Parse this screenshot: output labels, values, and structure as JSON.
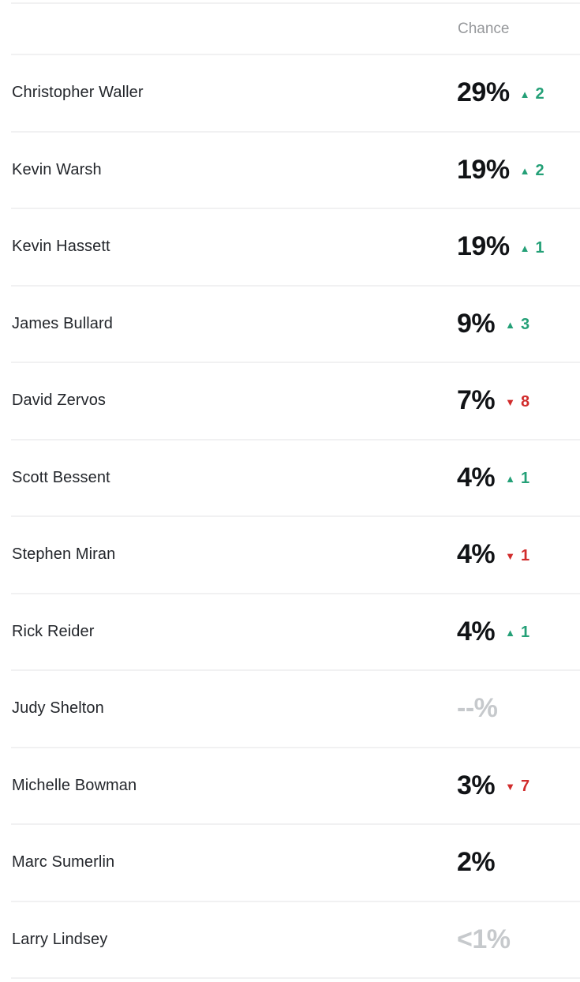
{
  "table": {
    "chance_label": "Chance",
    "rows": [
      {
        "name": "Christopher Waller",
        "value": "29%",
        "value_class": "value",
        "delta_icon": "▲",
        "delta": "2",
        "delta_class": "delta up"
      },
      {
        "name": "Kevin Warsh",
        "value": "19%",
        "value_class": "value",
        "delta_icon": "▲",
        "delta": "2",
        "delta_class": "delta up"
      },
      {
        "name": "Kevin Hassett",
        "value": "19%",
        "value_class": "value",
        "delta_icon": "▲",
        "delta": "1",
        "delta_class": "delta up"
      },
      {
        "name": "James Bullard",
        "value": "9%",
        "value_class": "value",
        "delta_icon": "▲",
        "delta": "3",
        "delta_class": "delta up"
      },
      {
        "name": "David Zervos",
        "value": "7%",
        "value_class": "value",
        "delta_icon": "▼",
        "delta": "8",
        "delta_class": "delta down"
      },
      {
        "name": "Scott Bessent",
        "value": "4%",
        "value_class": "value",
        "delta_icon": "▲",
        "delta": "1",
        "delta_class": "delta up"
      },
      {
        "name": "Stephen Miran",
        "value": "4%",
        "value_class": "value",
        "delta_icon": "▼",
        "delta": "1",
        "delta_class": "delta down"
      },
      {
        "name": "Rick Reider",
        "value": "4%",
        "value_class": "value",
        "delta_icon": "▲",
        "delta": "1",
        "delta_class": "delta up"
      },
      {
        "name": "Judy Shelton",
        "value": "--%",
        "value_class": "value muted",
        "delta_icon": "",
        "delta": "",
        "delta_class": "delta hidden"
      },
      {
        "name": "Michelle Bowman",
        "value": "3%",
        "value_class": "value",
        "delta_icon": "▼",
        "delta": "7",
        "delta_class": "delta down"
      },
      {
        "name": "Marc Sumerlin",
        "value": "2%",
        "value_class": "value",
        "delta_icon": "",
        "delta": "",
        "delta_class": "delta hidden"
      },
      {
        "name": "Larry Lindsey",
        "value": "<1%",
        "value_class": "value muted",
        "delta_icon": "",
        "delta": "",
        "delta_class": "delta hidden"
      }
    ]
  },
  "colors": {
    "up_green": "#24a077",
    "down_red": "#d12c2c",
    "muted_value_gray": "#c6c9cc",
    "header_gray": "#96989b",
    "divider_gray": "#f1f1f2",
    "value_black": "#111316"
  }
}
